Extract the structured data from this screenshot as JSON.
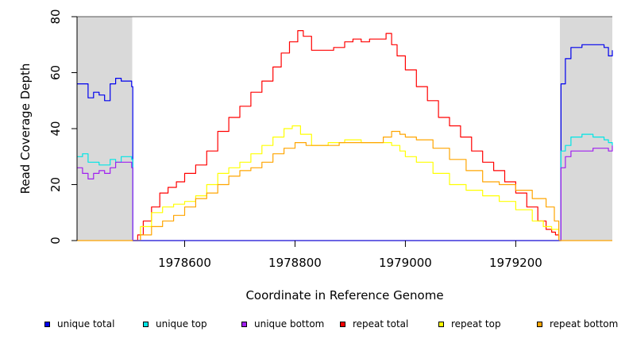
{
  "chart_data": {
    "type": "line",
    "title": "",
    "xlabel": "Coordinate in Reference Genome",
    "ylabel": "Read Coverage Depth",
    "xlim": [
      1978405,
      1979375
    ],
    "ylim": [
      0,
      80
    ],
    "xticks": [
      1978600,
      1978800,
      1979000,
      1979200
    ],
    "xtick_labels": [
      "1978600",
      "1978800",
      "1979000",
      "1979200"
    ],
    "yticks": [
      0,
      20,
      40,
      60,
      80
    ],
    "ytick_labels": [
      "0",
      "20",
      "40",
      "60",
      "80"
    ],
    "grid": false,
    "legend_placement": "bottom",
    "shaded_regions": [
      {
        "from": 1978405,
        "to": 1978505,
        "color": "#d9d9d9"
      },
      {
        "from": 1979280,
        "to": 1979375,
        "color": "#d9d9d9"
      }
    ],
    "series": [
      {
        "name": "unique total",
        "color": "#0000ee",
        "x": [
          1978405,
          1978415,
          1978425,
          1978435,
          1978445,
          1978455,
          1978465,
          1978475,
          1978485,
          1978495,
          1978504,
          1978506,
          1979279,
          1979282,
          1979290,
          1979300,
          1979320,
          1979340,
          1979360,
          1979368,
          1979375
        ],
        "y": [
          56,
          56,
          51,
          53,
          52,
          50,
          56,
          58,
          57,
          57,
          55,
          0,
          0,
          56,
          65,
          69,
          70,
          70,
          69,
          66,
          68
        ]
      },
      {
        "name": "unique top",
        "color": "#00e5e5",
        "x": [
          1978405,
          1978415,
          1978425,
          1978435,
          1978445,
          1978455,
          1978465,
          1978475,
          1978485,
          1978495,
          1978504,
          1978506,
          1979279,
          1979282,
          1979290,
          1979300,
          1979320,
          1979340,
          1979360,
          1979368,
          1979375
        ],
        "y": [
          30,
          31,
          28,
          28,
          27,
          27,
          29,
          28,
          30,
          30,
          29,
          0,
          0,
          32,
          34,
          37,
          38,
          37,
          36,
          35,
          34
        ]
      },
      {
        "name": "unique bottom",
        "color": "#a020f0",
        "x": [
          1978405,
          1978415,
          1978425,
          1978435,
          1978445,
          1978455,
          1978465,
          1978475,
          1978485,
          1978495,
          1978504,
          1978506,
          1979279,
          1979282,
          1979290,
          1979300,
          1979320,
          1979340,
          1979360,
          1979368,
          1979375
        ],
        "y": [
          26,
          24,
          22,
          24,
          25,
          24,
          26,
          28,
          28,
          28,
          26,
          0,
          0,
          26,
          30,
          32,
          32,
          33,
          33,
          32,
          34
        ]
      },
      {
        "name": "repeat total",
        "color": "#ff0000",
        "x": [
          1978505,
          1978515,
          1978525,
          1978540,
          1978555,
          1978570,
          1978585,
          1978600,
          1978620,
          1978640,
          1978660,
          1978680,
          1978700,
          1978720,
          1978740,
          1978760,
          1978775,
          1978790,
          1978805,
          1978815,
          1978830,
          1978850,
          1978870,
          1978890,
          1978905,
          1978920,
          1978935,
          1978950,
          1978965,
          1978975,
          1978985,
          1979000,
          1979020,
          1979040,
          1979060,
          1979080,
          1979100,
          1979120,
          1979140,
          1979160,
          1979180,
          1979200,
          1979220,
          1979240,
          1979255,
          1979265,
          1979272,
          1979278
        ],
        "y": [
          0,
          2,
          7,
          12,
          17,
          19,
          21,
          24,
          27,
          32,
          39,
          44,
          48,
          53,
          57,
          62,
          67,
          71,
          75,
          73,
          68,
          68,
          69,
          71,
          72,
          71,
          72,
          72,
          74,
          70,
          66,
          61,
          55,
          50,
          44,
          41,
          37,
          32,
          28,
          25,
          21,
          17,
          12,
          7,
          4,
          3,
          2,
          0
        ]
      },
      {
        "name": "repeat top",
        "color": "#ffff00",
        "x": [
          1978505,
          1978520,
          1978540,
          1978560,
          1978580,
          1978600,
          1978620,
          1978640,
          1978660,
          1978680,
          1978700,
          1978720,
          1978740,
          1978760,
          1978780,
          1978795,
          1978810,
          1978830,
          1978860,
          1978890,
          1978920,
          1978950,
          1978975,
          1978990,
          1979000,
          1979020,
          1979050,
          1979080,
          1979110,
          1979140,
          1979170,
          1979200,
          1979230,
          1979250,
          1979265,
          1979278
        ],
        "y": [
          0,
          5,
          10,
          12,
          13,
          14,
          16,
          20,
          24,
          26,
          28,
          31,
          34,
          37,
          40,
          41,
          38,
          34,
          35,
          36,
          35,
          35,
          34,
          32,
          30,
          28,
          24,
          20,
          18,
          16,
          14,
          11,
          7,
          5,
          4,
          0
        ]
      },
      {
        "name": "repeat bottom",
        "color": "#ffa500",
        "x": [
          1978505,
          1978520,
          1978540,
          1978560,
          1978580,
          1978600,
          1978620,
          1978640,
          1978660,
          1978680,
          1978700,
          1978720,
          1978740,
          1978760,
          1978780,
          1978800,
          1978820,
          1978850,
          1978880,
          1978910,
          1978940,
          1978960,
          1978975,
          1978990,
          1979000,
          1979020,
          1979050,
          1979080,
          1979110,
          1979140,
          1979170,
          1979200,
          1979230,
          1979255,
          1979270,
          1979278
        ],
        "y": [
          0,
          2,
          5,
          7,
          9,
          12,
          15,
          17,
          20,
          23,
          25,
          26,
          28,
          31,
          33,
          35,
          34,
          34,
          35,
          35,
          35,
          37,
          39,
          38,
          37,
          36,
          33,
          29,
          25,
          21,
          20,
          18,
          15,
          12,
          7,
          0
        ]
      }
    ]
  }
}
